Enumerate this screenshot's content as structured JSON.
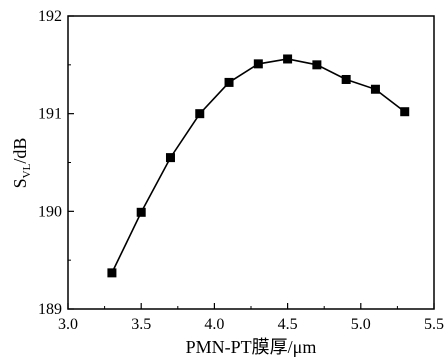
{
  "chart_data": {
    "type": "line",
    "title": "",
    "xlabel": "PMN-PT膜厚/μm",
    "ylabel": {
      "main": "S",
      "sub": "VL",
      "unit": "/dB"
    },
    "xlim": [
      3.0,
      5.5
    ],
    "ylim": [
      189,
      192
    ],
    "xticks": [
      "3.0",
      "3.5",
      "4.0",
      "4.5",
      "5.0",
      "5.5"
    ],
    "yticks": [
      "189",
      "190",
      "191",
      "192"
    ],
    "grid": false,
    "marker": "square",
    "series": [
      {
        "x": [
          3.3,
          3.5,
          3.7,
          3.9,
          4.1,
          4.3,
          4.5,
          4.7,
          4.9,
          5.1,
          5.3
        ],
        "y": [
          189.37,
          189.99,
          190.55,
          191.0,
          191.32,
          191.51,
          191.56,
          191.5,
          191.35,
          191.25,
          191.02
        ],
        "color": "#000000"
      }
    ]
  }
}
